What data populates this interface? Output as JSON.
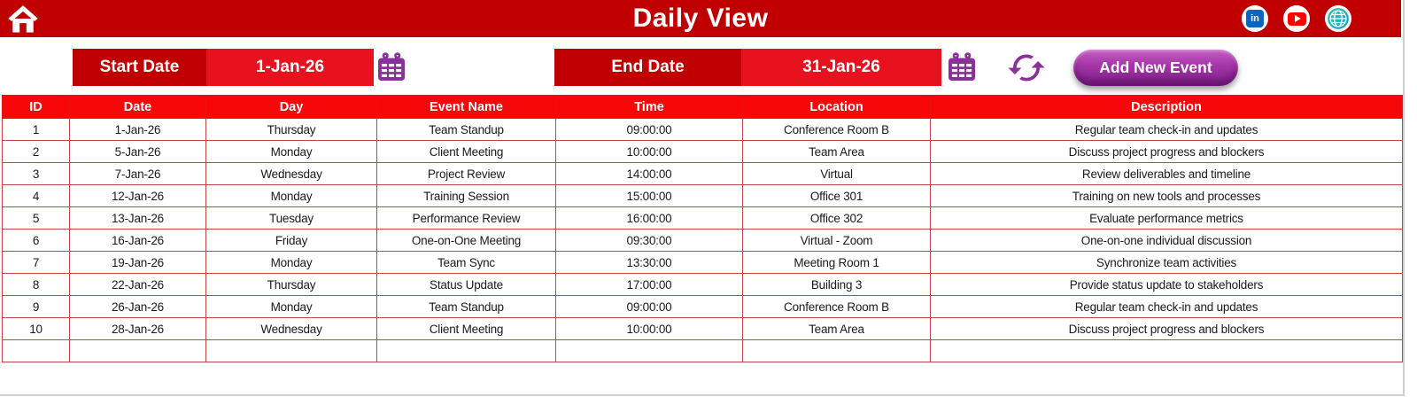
{
  "header": {
    "title": "Daily View",
    "icons": [
      "home-icon",
      "linkedin-icon",
      "youtube-icon",
      "globe-icon"
    ]
  },
  "toolbar": {
    "start_date": {
      "label": "Start Date",
      "value": "1-Jan-26"
    },
    "end_date": {
      "label": "End Date",
      "value": "31-Jan-26"
    },
    "add_event_label": "Add New Event",
    "icons": [
      "calendar-icon",
      "calendar-icon",
      "refresh-icon"
    ]
  },
  "colors": {
    "dark_red": "#C00000",
    "bright_red": "#E8121F",
    "header_red": "#F70707",
    "border_red": "#C04545",
    "purple": "#8B2F9B",
    "button_purple_light": "#C45EC0",
    "button_purple_dark": "#7C1F87",
    "linkedin_blue": "#0A66C2",
    "youtube_red": "#FF0000",
    "globe_teal": "#2EC9A7",
    "globe_blue": "#1F9BD7"
  },
  "table": {
    "columns": [
      "ID",
      "Date",
      "Day",
      "Event Name",
      "Time",
      "Location",
      "Description"
    ],
    "rows": [
      [
        "1",
        "1-Jan-26",
        "Thursday",
        "Team Standup",
        "09:00:00",
        "Conference Room B",
        "Regular team check-in and updates"
      ],
      [
        "2",
        "5-Jan-26",
        "Monday",
        "Client Meeting",
        "10:00:00",
        "Team Area",
        "Discuss project progress and blockers"
      ],
      [
        "3",
        "7-Jan-26",
        "Wednesday",
        "Project Review",
        "14:00:00",
        "Virtual",
        "Review deliverables and timeline"
      ],
      [
        "4",
        "12-Jan-26",
        "Monday",
        "Training Session",
        "15:00:00",
        "Office 301",
        "Training on new tools and processes"
      ],
      [
        "5",
        "13-Jan-26",
        "Tuesday",
        "Performance Review",
        "16:00:00",
        "Office 302",
        "Evaluate performance metrics"
      ],
      [
        "6",
        "16-Jan-26",
        "Friday",
        "One-on-One Meeting",
        "09:30:00",
        "Virtual - Zoom",
        "One-on-one individual discussion"
      ],
      [
        "7",
        "19-Jan-26",
        "Monday",
        "Team Sync",
        "13:30:00",
        "Meeting Room 1",
        "Synchronize team activities"
      ],
      [
        "8",
        "22-Jan-26",
        "Thursday",
        "Status Update",
        "17:00:00",
        "Building 3",
        "Provide status update to stakeholders"
      ],
      [
        "9",
        "26-Jan-26",
        "Monday",
        "Team Standup",
        "09:00:00",
        "Conference Room B",
        "Regular team check-in and updates"
      ],
      [
        "10",
        "28-Jan-26",
        "Wednesday",
        "Client Meeting",
        "10:00:00",
        "Team Area",
        "Discuss project progress and blockers"
      ],
      [
        "",
        "",
        "",
        "",
        "",
        "",
        ""
      ]
    ]
  }
}
